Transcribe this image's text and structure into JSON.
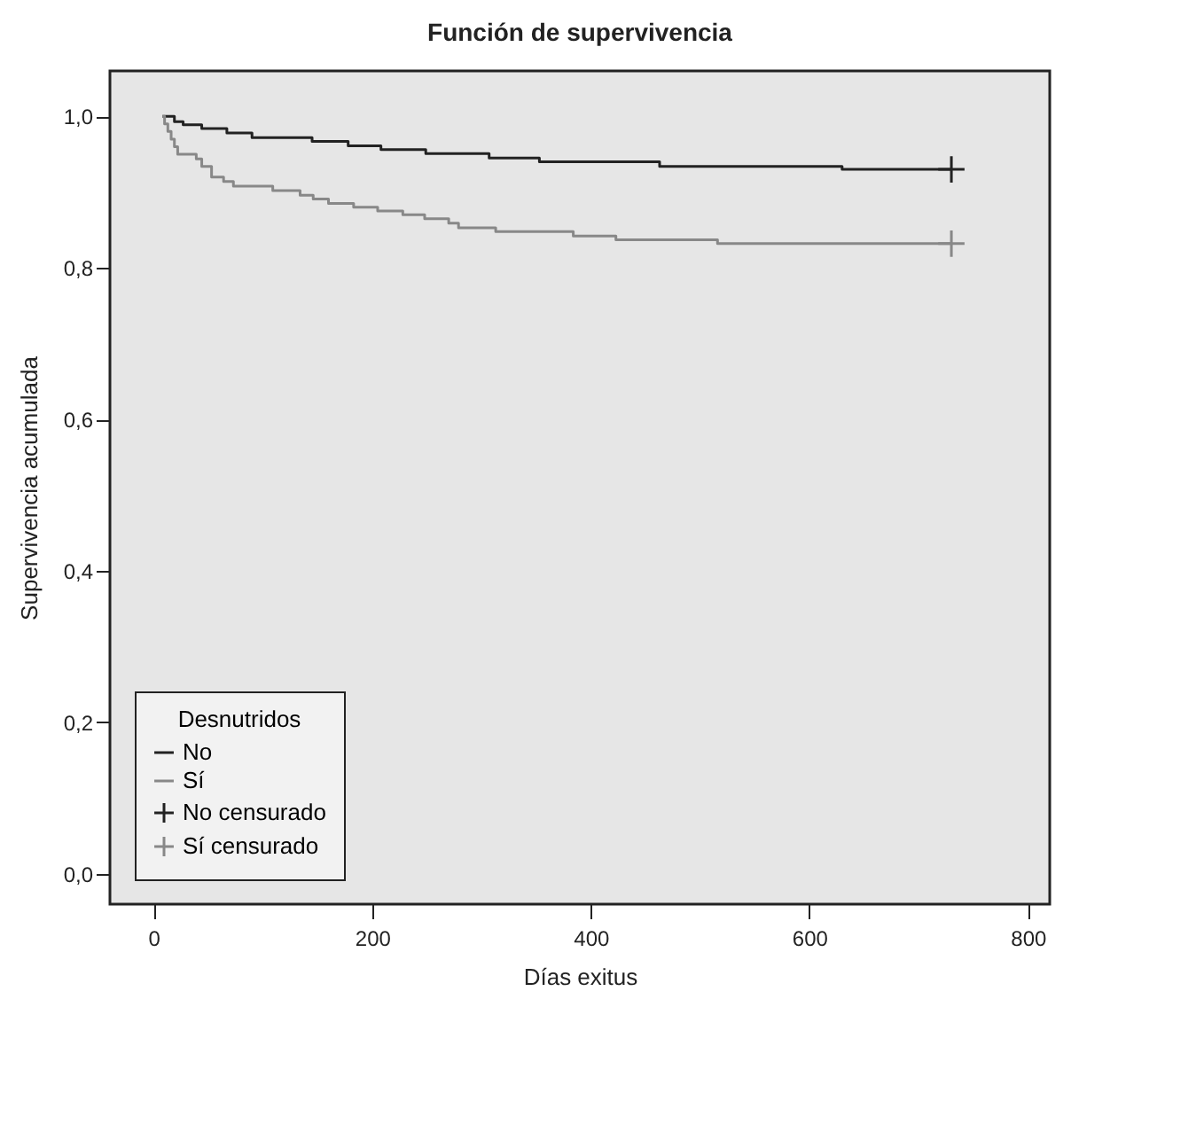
{
  "chart_data": {
    "type": "step",
    "title": "Función de supervivencia",
    "xlabel": "Días exitus",
    "ylabel": "Supervivencia acumulada",
    "legend_title": "Desnutridos",
    "legend": "bottom left",
    "grid": false,
    "xlim": [
      -40,
      820
    ],
    "xticks": [
      0,
      200,
      400,
      600,
      800
    ],
    "ylim": [
      -0.04,
      1.06
    ],
    "yticks": [
      {
        "value": 0,
        "label": "0,0"
      },
      {
        "value": 0.2,
        "label": "0,2"
      },
      {
        "value": 0.4,
        "label": "0,4"
      },
      {
        "value": 0.6,
        "label": "0,6"
      },
      {
        "value": 0.8,
        "label": "0,8"
      },
      {
        "value": 1.0,
        "label": "1,0"
      }
    ],
    "series": [
      {
        "name": "No",
        "color": "#222222",
        "x": [
          8,
          19,
          27,
          44,
          67,
          90,
          145,
          178,
          208,
          249,
          307,
          353,
          463,
          630,
          730
        ],
        "values": [
          1.0,
          0.993,
          0.989,
          0.984,
          0.978,
          0.972,
          0.967,
          0.961,
          0.956,
          0.951,
          0.945,
          0.94,
          0.934,
          0.93,
          0.93
        ]
      },
      {
        "name": "Sí",
        "color": "#888888",
        "x": [
          8,
          10,
          13,
          16,
          19,
          22,
          39,
          44,
          53,
          64,
          73,
          109,
          134,
          146,
          160,
          183,
          205,
          228,
          248,
          270,
          279,
          313,
          384,
          423,
          516,
          730
        ],
        "values": [
          1.0,
          0.99,
          0.98,
          0.97,
          0.96,
          0.95,
          0.944,
          0.934,
          0.92,
          0.914,
          0.908,
          0.902,
          0.896,
          0.891,
          0.885,
          0.88,
          0.875,
          0.87,
          0.865,
          0.859,
          0.853,
          0.848,
          0.842,
          0.837,
          0.832,
          0.832
        ]
      },
      {
        "name": "No censurado",
        "type": "scatter",
        "marker": "cross",
        "color": "#222222",
        "x": [
          730
        ],
        "values": [
          0.93
        ]
      },
      {
        "name": "Sí censurado",
        "type": "scatter",
        "marker": "cross",
        "color": "#888888",
        "x": [
          730
        ],
        "values": [
          0.832
        ]
      }
    ]
  }
}
